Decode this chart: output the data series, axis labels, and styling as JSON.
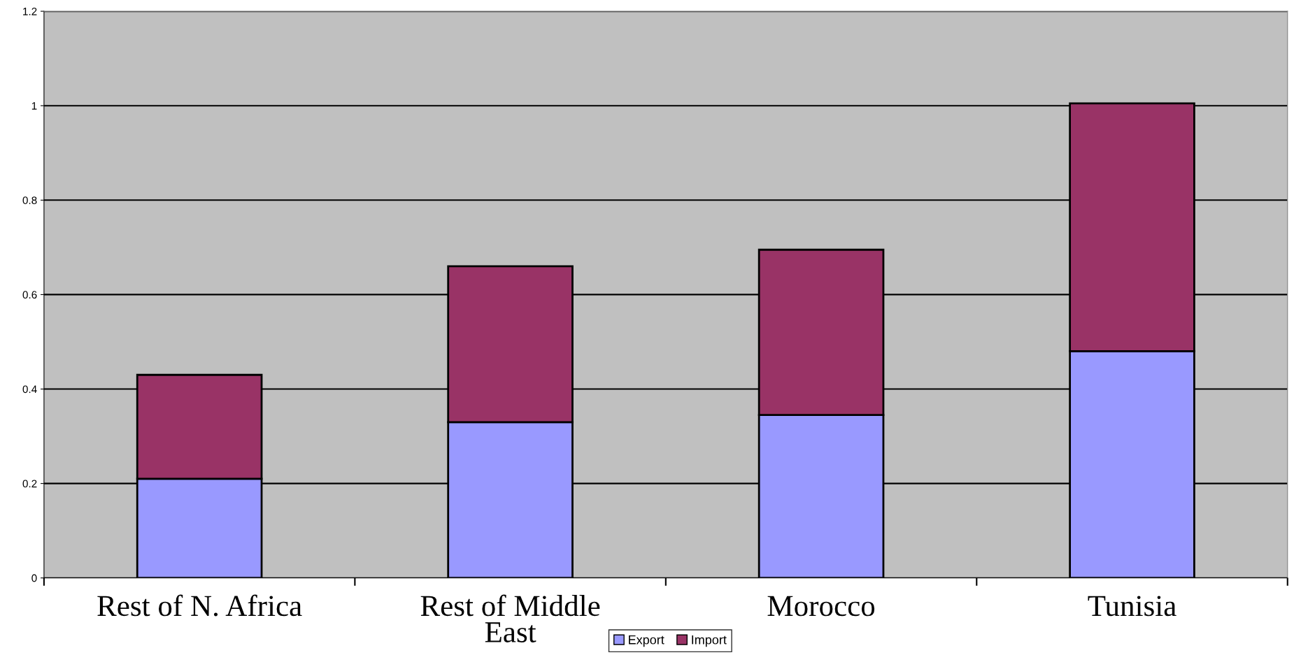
{
  "chart_data": {
    "type": "bar",
    "stacked": true,
    "categories": [
      "Rest of N. Africa",
      "Rest of Middle East",
      "Morocco",
      "Tunisia"
    ],
    "series": [
      {
        "name": "Export",
        "color": "#9999ff",
        "values": [
          0.21,
          0.33,
          0.345,
          0.48
        ]
      },
      {
        "name": "Import",
        "color": "#993366",
        "values": [
          0.22,
          0.33,
          0.35,
          0.525
        ]
      }
    ],
    "ylim": [
      0,
      1.2
    ],
    "yticks": [
      0,
      0.2,
      0.4,
      0.6,
      0.8,
      1,
      1.2
    ],
    "grid": "y",
    "legend": "bottom"
  }
}
